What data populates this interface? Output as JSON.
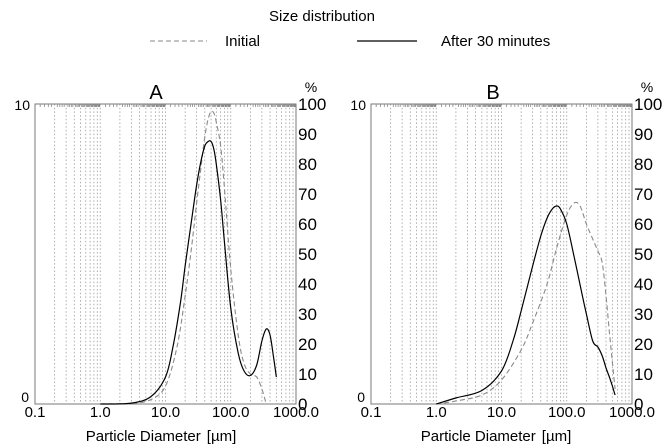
{
  "figure": {
    "title": "Size distribution",
    "legend": [
      {
        "name": "Initial",
        "style": "dashed",
        "color": "#8a8a8a"
      },
      {
        "name": "After 30 minutes",
        "style": "solid",
        "color": "#000000"
      }
    ]
  },
  "chart_data": [
    {
      "type": "line",
      "panel_label": "A",
      "xlabel": "Particle Diameter",
      "xunit": "[µm]",
      "xscale": "log",
      "xlim": [
        0.1,
        1000
      ],
      "xticks": [
        "0.1",
        "1.0",
        "10.0",
        "100.0",
        "1000.0"
      ],
      "ylim": [
        0,
        10
      ],
      "yticks_left": [
        "0",
        "10"
      ],
      "right_axis_label": "%",
      "yticks_right": [
        "0",
        "10",
        "20",
        "30",
        "40",
        "50",
        "60",
        "70",
        "80",
        "90",
        "100"
      ],
      "grid": "vertical",
      "series": [
        {
          "name": "Initial",
          "x": [
            1.0,
            3.0,
            6.0,
            10.0,
            15.0,
            20.0,
            25.0,
            30.0,
            35.0,
            40.0,
            45.0,
            50.0,
            55.0,
            60.0,
            70.0,
            80.0,
            100.0,
            130.0,
            160.0,
            200.0,
            250.0,
            300.0,
            350.0
          ],
          "y": [
            0.0,
            0.02,
            0.15,
            0.6,
            1.9,
            3.6,
            5.2,
            6.7,
            7.9,
            8.9,
            9.5,
            9.75,
            9.7,
            9.4,
            8.6,
            7.2,
            4.5,
            2.3,
            1.35,
            1.0,
            0.9,
            0.5,
            0.0
          ]
        },
        {
          "name": "After 30 minutes",
          "x": [
            1.0,
            3.0,
            6.0,
            10.0,
            13.0,
            17.0,
            20.0,
            25.0,
            30.0,
            35.0,
            40.0,
            45.0,
            50.0,
            55.0,
            60.0,
            70.0,
            80.0,
            100.0,
            130.0,
            160.0,
            200.0,
            250.0,
            300.0,
            350.0,
            400.0,
            450.0,
            500.0
          ],
          "y": [
            0.0,
            0.03,
            0.25,
            0.9,
            1.9,
            3.4,
            4.6,
            6.1,
            7.3,
            8.1,
            8.6,
            8.75,
            8.75,
            8.5,
            8.0,
            6.8,
            5.4,
            3.2,
            1.7,
            1.1,
            0.95,
            1.3,
            2.1,
            2.5,
            2.3,
            1.6,
            0.9
          ]
        }
      ]
    },
    {
      "type": "line",
      "panel_label": "B",
      "xlabel": "Particle Diameter",
      "xunit": "[µm]",
      "xscale": "log",
      "xlim": [
        0.1,
        1000
      ],
      "xticks": [
        "0.1",
        "1.0",
        "10.0",
        "100.0",
        "1000.0"
      ],
      "ylim": [
        0,
        10
      ],
      "yticks_left": [
        "0",
        "10"
      ],
      "right_axis_label": "%",
      "yticks_right": [
        "0",
        "10",
        "20",
        "30",
        "40",
        "50",
        "60",
        "70",
        "80",
        "90",
        "100"
      ],
      "grid": "vertical",
      "series": [
        {
          "name": "Initial",
          "x": [
            1.0,
            2.0,
            5.0,
            10.0,
            20.0,
            30.0,
            50.0,
            70.0,
            100.0,
            130.0,
            160.0,
            200.0,
            250.0,
            300.0,
            350.0,
            400.0,
            450.0,
            500.0,
            550.0
          ],
          "y": [
            0.0,
            0.1,
            0.3,
            0.8,
            1.8,
            2.7,
            4.0,
            5.2,
            6.3,
            6.7,
            6.6,
            6.0,
            5.5,
            5.1,
            4.7,
            3.6,
            2.4,
            1.4,
            0.5
          ]
        },
        {
          "name": "After 30 minutes",
          "x": [
            1.0,
            2.0,
            5.0,
            10.0,
            15.0,
            20.0,
            30.0,
            40.0,
            50.0,
            60.0,
            70.0,
            80.0,
            100.0,
            130.0,
            170.0,
            200.0,
            250.0,
            300.0,
            350.0,
            400.0,
            450.0,
            500.0,
            550.0
          ],
          "y": [
            0.0,
            0.2,
            0.45,
            1.1,
            2.1,
            3.1,
            4.6,
            5.6,
            6.2,
            6.5,
            6.6,
            6.5,
            6.0,
            4.9,
            3.7,
            3.0,
            2.1,
            1.9,
            1.6,
            1.2,
            0.9,
            0.6,
            0.3
          ]
        }
      ]
    }
  ]
}
